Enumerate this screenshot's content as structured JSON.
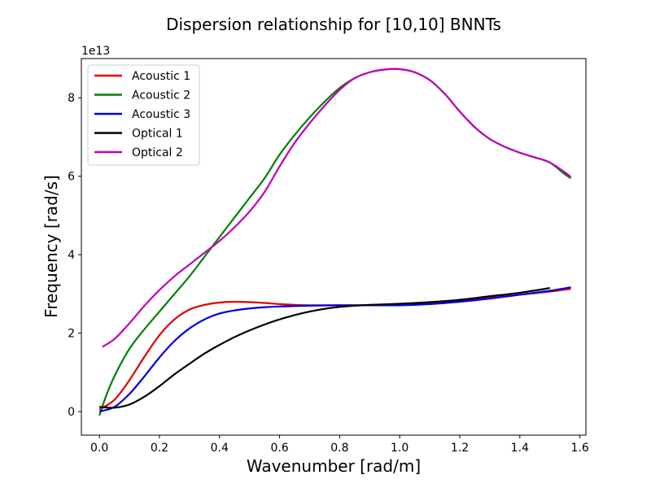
{
  "chart_data": {
    "type": "line",
    "title": "Dispersion relationship for [10,10] BNNTs",
    "xlabel": "Wavenumber [rad/m]",
    "ylabel": "Frequency [rad/s]",
    "y_offset_label": "1e13",
    "xlim": [
      -0.06,
      1.62
    ],
    "ylim": [
      -0.6,
      9.0
    ],
    "x_ticks": [
      0.0,
      0.2,
      0.4,
      0.6,
      0.8,
      1.0,
      1.2,
      1.4,
      1.6
    ],
    "x_tick_labels": [
      "0.0",
      "0.2",
      "0.4",
      "0.6",
      "0.8",
      "1.0",
      "1.2",
      "1.4",
      "1.6"
    ],
    "y_ticks": [
      0,
      2,
      4,
      6,
      8
    ],
    "y_tick_labels": [
      "0",
      "2",
      "4",
      "6",
      "8"
    ],
    "grid": false,
    "legend_position": "top-left",
    "series": [
      {
        "name": "Acoustic 1",
        "color": "#e00000",
        "x": [
          0.0,
          0.05,
          0.1,
          0.15,
          0.2,
          0.25,
          0.3,
          0.35,
          0.4,
          0.45,
          0.5,
          0.55,
          0.6,
          0.65,
          0.7,
          0.8,
          0.9,
          1.0,
          1.1,
          1.2,
          1.3,
          1.4,
          1.5,
          1.57
        ],
        "y": [
          0.05,
          0.3,
          0.8,
          1.4,
          1.95,
          2.35,
          2.6,
          2.72,
          2.78,
          2.8,
          2.79,
          2.77,
          2.74,
          2.72,
          2.71,
          2.71,
          2.71,
          2.73,
          2.76,
          2.82,
          2.9,
          2.98,
          3.06,
          3.13
        ]
      },
      {
        "name": "Acoustic 2",
        "color": "#008000",
        "x": [
          0.0,
          0.02,
          0.05,
          0.1,
          0.15,
          0.2,
          0.25,
          0.3,
          0.35,
          0.4,
          0.45,
          0.5,
          0.55,
          0.6,
          0.65,
          0.7,
          0.75,
          0.8,
          0.85,
          0.9,
          0.95,
          1.0,
          1.05,
          1.1,
          1.15,
          1.2,
          1.25,
          1.3,
          1.35,
          1.4,
          1.45,
          1.5,
          1.55,
          1.57
        ],
        "y": [
          -0.1,
          0.35,
          0.9,
          1.6,
          2.1,
          2.55,
          3.0,
          3.45,
          3.95,
          4.45,
          4.95,
          5.45,
          5.95,
          6.55,
          7.05,
          7.5,
          7.9,
          8.25,
          8.5,
          8.65,
          8.72,
          8.73,
          8.65,
          8.45,
          8.1,
          7.65,
          7.25,
          6.95,
          6.75,
          6.6,
          6.48,
          6.35,
          6.05,
          5.95
        ]
      },
      {
        "name": "Acoustic 3",
        "color": "#0000e0",
        "x": [
          0.0,
          0.05,
          0.1,
          0.15,
          0.2,
          0.25,
          0.3,
          0.35,
          0.4,
          0.45,
          0.5,
          0.55,
          0.6,
          0.65,
          0.7,
          0.8,
          0.9,
          1.0,
          1.1,
          1.2,
          1.3,
          1.4,
          1.5,
          1.57
        ],
        "y": [
          0.0,
          0.12,
          0.45,
          0.9,
          1.38,
          1.8,
          2.12,
          2.35,
          2.5,
          2.58,
          2.63,
          2.66,
          2.68,
          2.69,
          2.7,
          2.71,
          2.71,
          2.71,
          2.74,
          2.8,
          2.88,
          2.98,
          3.08,
          3.17
        ]
      },
      {
        "name": "Optical 1",
        "color": "#000000",
        "x": [
          0.0,
          0.05,
          0.1,
          0.15,
          0.2,
          0.25,
          0.3,
          0.35,
          0.4,
          0.45,
          0.5,
          0.55,
          0.6,
          0.65,
          0.7,
          0.75,
          0.8,
          0.85,
          0.9,
          1.0,
          1.1,
          1.2,
          1.3,
          1.4,
          1.5
        ],
        "y": [
          0.12,
          0.1,
          0.18,
          0.38,
          0.65,
          0.95,
          1.22,
          1.48,
          1.7,
          1.9,
          2.07,
          2.22,
          2.35,
          2.46,
          2.55,
          2.62,
          2.67,
          2.7,
          2.72,
          2.75,
          2.79,
          2.85,
          2.94,
          3.03,
          3.15
        ]
      },
      {
        "name": "Optical 2",
        "color": "#bf00bf",
        "x": [
          0.01,
          0.05,
          0.1,
          0.15,
          0.2,
          0.25,
          0.3,
          0.35,
          0.4,
          0.45,
          0.5,
          0.55,
          0.6,
          0.65,
          0.7,
          0.75,
          0.8,
          0.85,
          0.9,
          0.95,
          1.0,
          1.05,
          1.1,
          1.15,
          1.2,
          1.25,
          1.3,
          1.35,
          1.4,
          1.45,
          1.5,
          1.55,
          1.57
        ],
        "y": [
          1.65,
          1.85,
          2.25,
          2.7,
          3.1,
          3.45,
          3.75,
          4.05,
          4.35,
          4.7,
          5.1,
          5.6,
          6.25,
          6.85,
          7.35,
          7.8,
          8.2,
          8.5,
          8.65,
          8.72,
          8.73,
          8.65,
          8.45,
          8.1,
          7.65,
          7.25,
          6.95,
          6.75,
          6.6,
          6.48,
          6.35,
          6.1,
          5.98
        ]
      }
    ]
  }
}
